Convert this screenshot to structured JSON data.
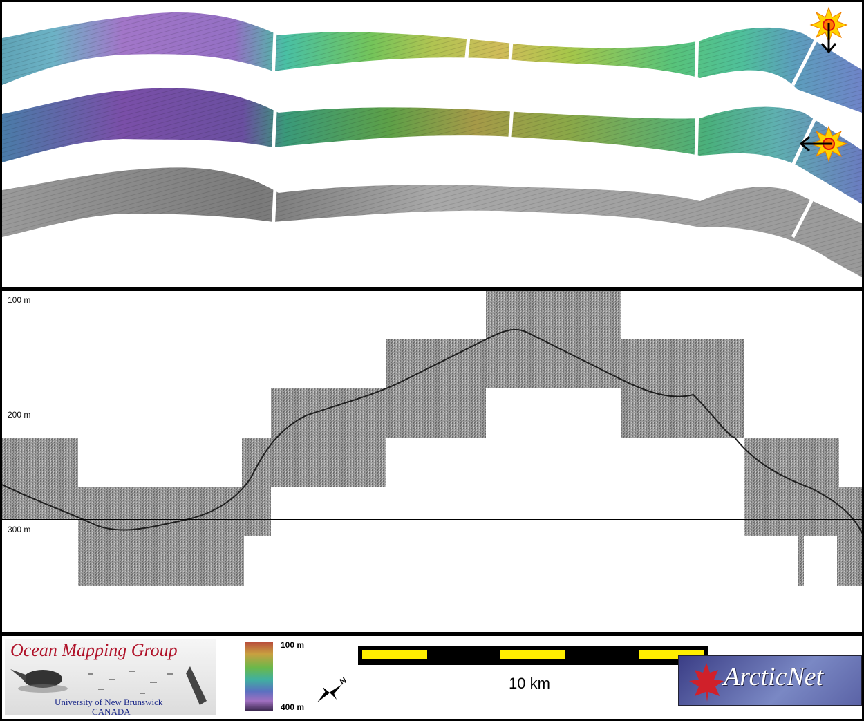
{
  "profile": {
    "depth_labels": [
      "100 m",
      "200 m",
      "300 m"
    ]
  },
  "legend": {
    "organization": "Ocean Mapping Group",
    "university": "University of New Brunswick",
    "country": "CANADA",
    "colorbar_top": "100 m",
    "colorbar_bottom": "400 m",
    "north_letter": "N",
    "scale_label": "10 km",
    "partner_logo_text": "ArcticNet"
  },
  "colors": {
    "scale_yellow": "#ffee00",
    "scale_black": "#000000",
    "omg_red": "#b0132a",
    "omg_blue": "#1d2a8a"
  }
}
